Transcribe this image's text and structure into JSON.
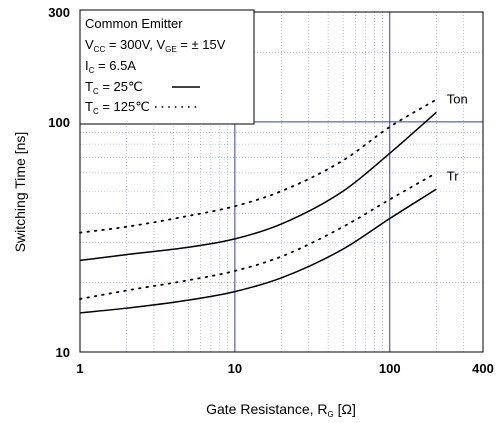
{
  "chart_data": {
    "type": "line",
    "xscale": "log",
    "yscale": "log",
    "xlim": [
      1,
      400
    ],
    "ylim": [
      10,
      300
    ],
    "grid": true,
    "xlabel": {
      "main": "Gate Resistance, R",
      "sub": "G",
      "unit": " [Ω]"
    },
    "ylabel": "Switching Time  [ns]",
    "xticks": [
      {
        "value": 1,
        "label": "1"
      },
      {
        "value": 10,
        "label": "10"
      },
      {
        "value": 100,
        "label": "100"
      },
      {
        "value": 400,
        "label": "400"
      }
    ],
    "yticks": [
      {
        "value": 10,
        "label": "10"
      },
      {
        "value": 100,
        "label": "100"
      },
      {
        "value": 300,
        "label": "300"
      }
    ],
    "conditions": {
      "title": "Common Emitter",
      "line2": {
        "v1": "V",
        "s1": "CC",
        "t1": " = 300V, V",
        "s2": "GE",
        "t2": " = ±  15V"
      },
      "line3": {
        "v": "I",
        "s": "C",
        "t": " = 6.5A"
      },
      "line4": {
        "v": "T",
        "s": "C",
        "t": " =   25℃"
      },
      "line5": {
        "v": "T",
        "s": "C",
        "t": " = 125℃"
      }
    },
    "series": [
      {
        "label": "Ton",
        "condition": "125℃",
        "style": "dotted",
        "x": [
          1,
          2,
          5,
          10,
          20,
          50,
          100,
          200
        ],
        "y": [
          33,
          35,
          39,
          43,
          50,
          68,
          95,
          125
        ]
      },
      {
        "label": "Ton",
        "condition": "25℃",
        "style": "solid",
        "x": [
          1,
          2,
          5,
          10,
          20,
          50,
          100,
          200
        ],
        "y": [
          25,
          26.5,
          28.5,
          31,
          36,
          50,
          73,
          110
        ]
      },
      {
        "label": "Tr",
        "condition": "125℃",
        "style": "dotted",
        "x": [
          1,
          2,
          5,
          10,
          20,
          50,
          100,
          200
        ],
        "y": [
          17,
          18.5,
          20.5,
          22.5,
          26,
          35,
          46,
          60
        ]
      },
      {
        "label": "Tr",
        "condition": "25℃",
        "style": "solid",
        "x": [
          1,
          2,
          5,
          10,
          20,
          50,
          100,
          200
        ],
        "y": [
          14.8,
          15.5,
          16.8,
          18.3,
          21,
          28,
          38,
          51
        ]
      }
    ],
    "series_labels": [
      {
        "text": "Ton",
        "x": 220,
        "y": 125
      },
      {
        "text": "Tr",
        "x": 220,
        "y": 58
      }
    ]
  }
}
